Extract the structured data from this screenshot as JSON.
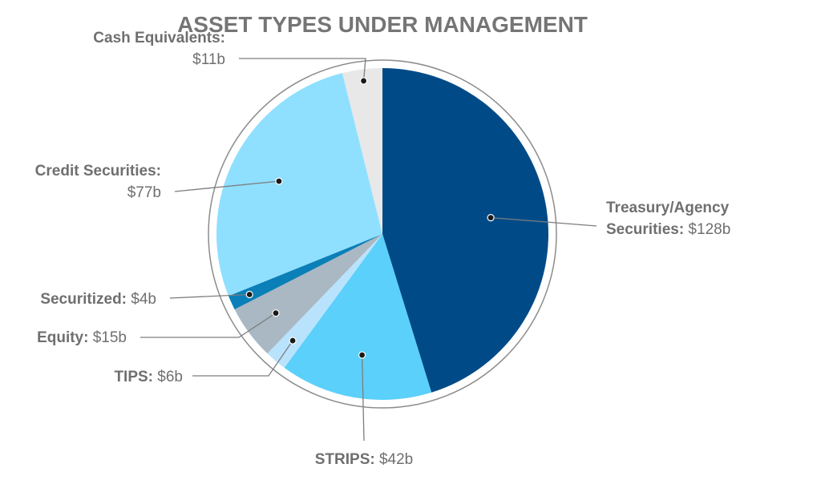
{
  "chart_data": {
    "type": "pie",
    "title": "ASSET TYPES UNDER MANAGEMENT",
    "colors": {
      "Treasury/Agency Securities": "#004b87",
      "STRIPS": "#5bd0fa",
      "TIPS": "#b9e3fd",
      "Equity": "#a9b8c3",
      "Securitized": "#0b7fb7",
      "Credit Securities": "#8fdfff",
      "Cash Equivalents": "#e8e8e8"
    },
    "slices": [
      {
        "label": "Treasury/Agency Securities",
        "value": 128,
        "value_label": "$128b",
        "name_lines": [
          "Treasury/Agency",
          "Securities:"
        ]
      },
      {
        "label": "STRIPS",
        "value": 42,
        "value_label": "$42b",
        "name_lines": [
          "STRIPS:"
        ]
      },
      {
        "label": "TIPS",
        "value": 6,
        "value_label": "$6b",
        "name_lines": [
          "TIPS:"
        ]
      },
      {
        "label": "Equity",
        "value": 15,
        "value_label": "$15b",
        "name_lines": [
          "Equity:"
        ]
      },
      {
        "label": "Securitized",
        "value": 4,
        "value_label": "$4b",
        "name_lines": [
          "Securitized:"
        ]
      },
      {
        "label": "Credit Securities",
        "value": 77,
        "value_label": "$77b",
        "name_lines": [
          "Credit Securities:"
        ]
      },
      {
        "label": "Cash Equivalents",
        "value": 11,
        "value_label": "$11b",
        "name_lines": [
          "Cash Equivalents:"
        ]
      }
    ]
  }
}
